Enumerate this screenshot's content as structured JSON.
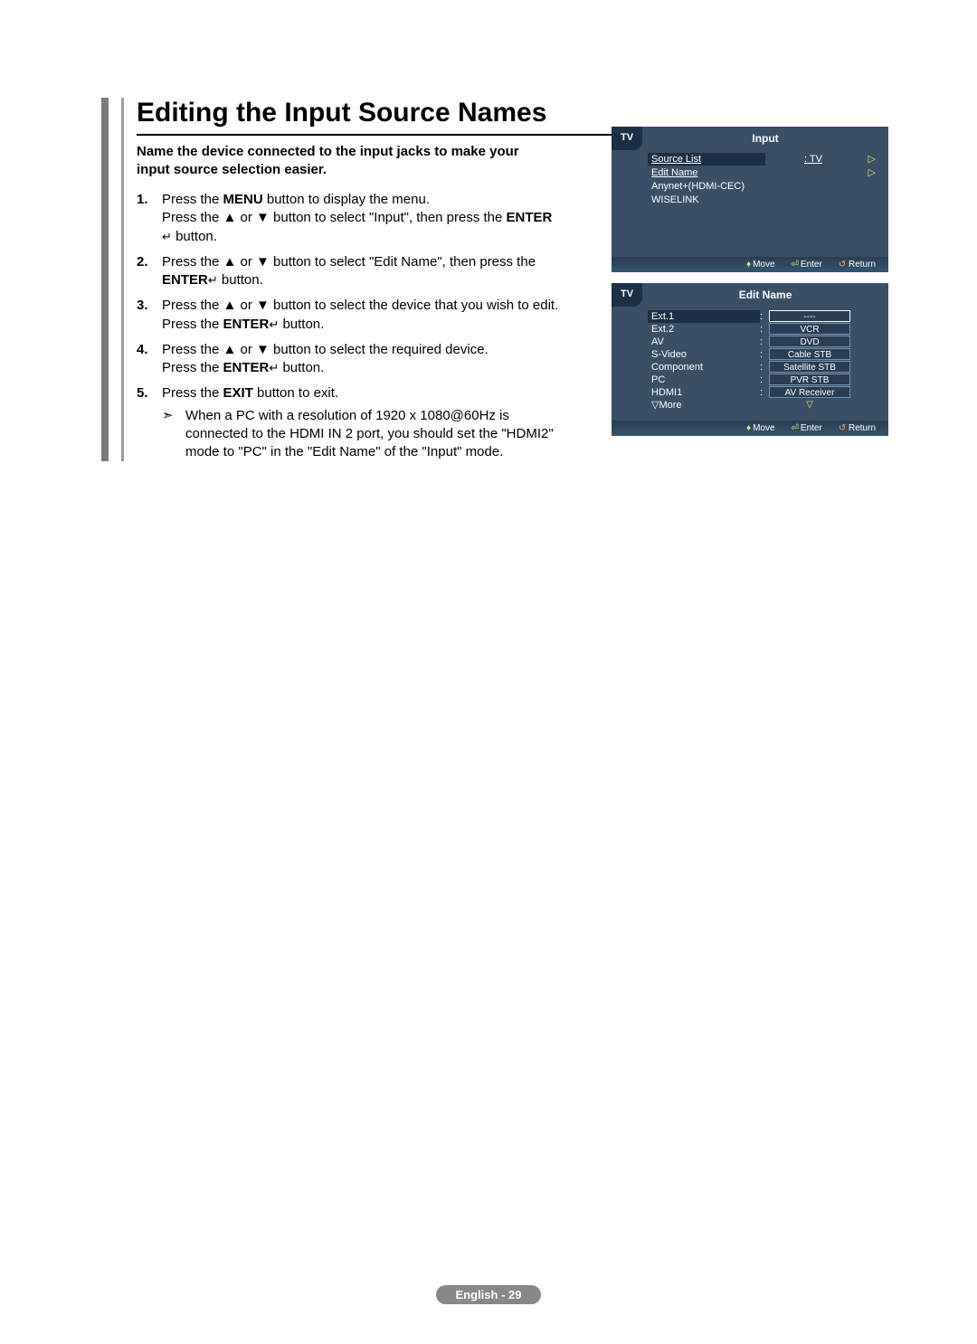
{
  "title": "Editing the Input Source Names",
  "intro": "Name the device connected to the input jacks to make your input source selection easier.",
  "steps": {
    "s1a": "Press the ",
    "s1_menu": "MENU",
    "s1b": " button to display the menu.",
    "s1c": "Press the ▲ or ▼ button to select \"Input\", then press the ",
    "s1_enter": "ENTER",
    "s1d": " button.",
    "s2a": "Press the ▲ or ▼ button to select \"Edit Name\", then press the ",
    "s2_enter": "ENTER",
    "s2b": " button.",
    "s3a": "Press the ▲ or ▼ button to select the device that you wish to edit.",
    "s3b": "Press the ",
    "s3_enter": "ENTER",
    "s3c": " button.",
    "s4a": "Press the ▲ or ▼ button to select the required device.",
    "s4b": "Press the ",
    "s4_enter": "ENTER",
    "s4c": " button.",
    "s5a": "Press the ",
    "s5_exit": "EXIT",
    "s5b": " button to exit.",
    "s5_note": "When a PC with a resolution of 1920 x 1080@60Hz is connected to the HDMI IN 2 port, you should set the \"HDMI2\" mode to \"PC\" in the \"Edit Name\" of the \"Input\" mode."
  },
  "menu1": {
    "badge": "TV",
    "title": "Input",
    "rows": {
      "source_list": "Source List",
      "source_val": ": TV",
      "edit_name": "Edit Name",
      "anynet": "Anynet+(HDMI-CEC)",
      "wiselink": "WISELINK"
    },
    "footer": {
      "move": "Move",
      "enter": "Enter",
      "return": "Return"
    }
  },
  "menu2": {
    "badge": "TV",
    "title": "Edit Name",
    "labels": [
      "Ext.1",
      "Ext.2",
      "AV",
      "S-Video",
      "Component",
      "PC",
      "HDMI1",
      "▽More"
    ],
    "values": [
      "----",
      "VCR",
      "DVD",
      "Cable STB",
      "Satellite STB",
      "PVR STB",
      "AV Receiver",
      "▽"
    ],
    "footer": {
      "move": "Move",
      "enter": "Enter",
      "return": "Return"
    }
  },
  "footer": "English - 29"
}
